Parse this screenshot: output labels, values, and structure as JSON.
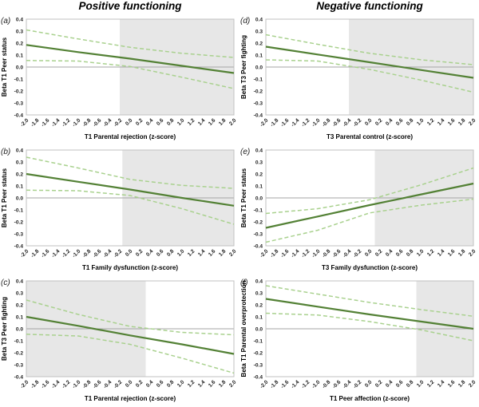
{
  "chart_data": {
    "type": "line",
    "columns": [
      {
        "title": "Positive functioning"
      },
      {
        "title": "Negative functioning"
      }
    ],
    "x": [
      -2,
      -1,
      0,
      1,
      2
    ],
    "xlim": [
      -2,
      2
    ],
    "ylim": [
      -0.4,
      0.4
    ],
    "x_ticks": [
      "-2.0",
      "-1.8",
      "-1.6",
      "-1.4",
      "-1.2",
      "-1.0",
      "-0.8",
      "-0.6",
      "-0.4",
      "-0.2",
      "0.0",
      "0.2",
      "0.4",
      "0.6",
      "0.8",
      "1.0",
      "1.2",
      "1.4",
      "1.6",
      "1.8",
      "2.0"
    ],
    "y_ticks": [
      "0.4",
      "0.3",
      "0.2",
      "0.1",
      "0.0",
      "-0.1",
      "-0.2",
      "-0.3",
      "-0.4"
    ],
    "grid": "off",
    "legend": "none",
    "colors": {
      "main": "#538135",
      "ci": "#a9d18e",
      "shade": "#e7e7e7",
      "border": "#c0c0c0",
      "zero": "#a6a6a6"
    },
    "panels": [
      {
        "id": "a",
        "letter": "(a)",
        "column": 0,
        "ylabel": "Beta T1 Peer status",
        "xlabel": "T1 Parental rejection (z-score)",
        "shade_x": [
          -0.2,
          2
        ],
        "series": [
          {
            "name": "simple slope",
            "style": "solid",
            "values": [
              0.185,
              0.125,
              0.07,
              0.01,
              -0.05
            ]
          },
          {
            "name": "upper 95% CI",
            "style": "upper",
            "values": [
              0.31,
              0.235,
              0.165,
              0.115,
              0.08
            ]
          },
          {
            "name": "lower 95% CI",
            "style": "lower",
            "values": [
              0.055,
              0.05,
              0.005,
              -0.085,
              -0.18
            ]
          }
        ]
      },
      {
        "id": "b",
        "letter": "(b)",
        "column": 0,
        "ylabel": "Beta T1 Peer status",
        "xlabel": "T1 Family dysfunction (z-score)",
        "shade_x": [
          -0.15,
          2
        ],
        "series": [
          {
            "name": "simple slope",
            "style": "solid",
            "values": [
              0.2,
              0.135,
              0.07,
              0.0,
              -0.065
            ]
          },
          {
            "name": "upper 95% CI",
            "style": "upper",
            "values": [
              0.34,
              0.25,
              0.155,
              0.105,
              0.08
            ]
          },
          {
            "name": "lower 95% CI",
            "style": "lower",
            "values": [
              0.065,
              0.06,
              0.02,
              -0.09,
              -0.22
            ]
          }
        ]
      },
      {
        "id": "c",
        "letter": "(c)",
        "column": 0,
        "ylabel": "Beta T3 Peer fighting",
        "xlabel": "T1 Parental rejection (z-score)",
        "shade_x": [
          -2,
          0.3
        ],
        "series": [
          {
            "name": "simple slope",
            "style": "solid",
            "values": [
              0.1,
              0.025,
              -0.055,
              -0.13,
              -0.21
            ]
          },
          {
            "name": "upper 95% CI",
            "style": "upper",
            "values": [
              0.24,
              0.12,
              0.02,
              -0.03,
              -0.05
            ]
          },
          {
            "name": "lower 95% CI",
            "style": "lower",
            "values": [
              -0.045,
              -0.06,
              -0.13,
              -0.245,
              -0.37
            ]
          }
        ]
      },
      {
        "id": "d",
        "letter": "(d)",
        "column": 1,
        "ylabel": "Beta T3 Peer fighting",
        "xlabel": "T3 Parental control (z-score)",
        "shade_x": [
          -0.4,
          2
        ],
        "series": [
          {
            "name": "simple slope",
            "style": "solid",
            "values": [
              0.17,
              0.105,
              0.04,
              -0.025,
              -0.09
            ]
          },
          {
            "name": "upper 95% CI",
            "style": "upper",
            "values": [
              0.27,
              0.19,
              0.115,
              0.06,
              0.02
            ]
          },
          {
            "name": "lower 95% CI",
            "style": "lower",
            "values": [
              0.06,
              0.05,
              -0.02,
              -0.11,
              -0.21
            ]
          }
        ]
      },
      {
        "id": "e",
        "letter": "(e)",
        "column": 1,
        "ylabel": "Beta T1 Peer status",
        "xlabel": "T3 Family dysfunction (z-score)",
        "shade_x": [
          0.1,
          2
        ],
        "series": [
          {
            "name": "simple slope",
            "style": "solid",
            "values": [
              -0.25,
              -0.155,
              -0.06,
              0.03,
              0.12
            ]
          },
          {
            "name": "upper 95% CI",
            "style": "upper",
            "values": [
              -0.13,
              -0.09,
              -0.015,
              0.11,
              0.25
            ]
          },
          {
            "name": "lower 95% CI",
            "style": "lower",
            "values": [
              -0.37,
              -0.27,
              -0.125,
              -0.06,
              -0.01
            ]
          }
        ]
      },
      {
        "id": "f",
        "letter": "(f)",
        "column": 1,
        "ylabel": "Beta T1 Parental overprotection",
        "xlabel": "T1 Peer affection (z-score)",
        "shade_x": [
          0.9,
          2
        ],
        "series": [
          {
            "name": "simple slope",
            "style": "solid",
            "values": [
              0.25,
              0.185,
              0.12,
              0.06,
              0.0
            ]
          },
          {
            "name": "upper 95% CI",
            "style": "upper",
            "values": [
              0.36,
              0.29,
              0.22,
              0.16,
              0.105
            ]
          },
          {
            "name": "lower 95% CI",
            "style": "lower",
            "values": [
              0.13,
              0.115,
              0.06,
              -0.01,
              -0.1
            ]
          }
        ]
      }
    ]
  }
}
